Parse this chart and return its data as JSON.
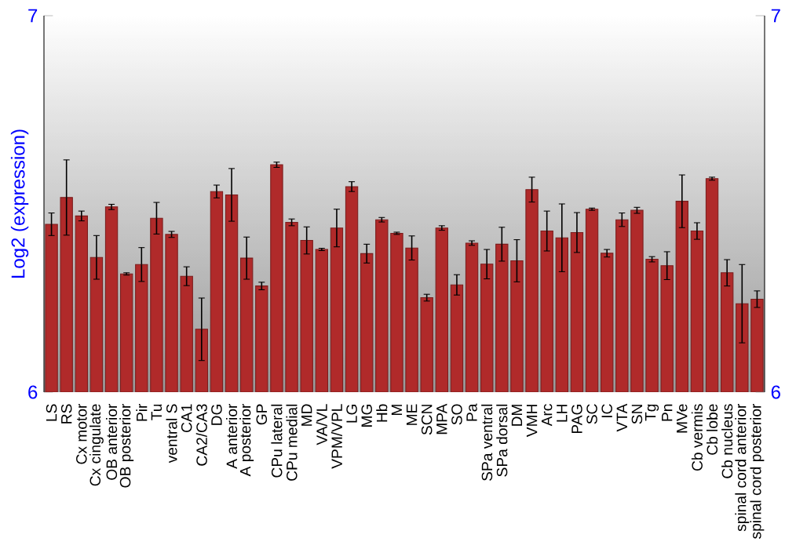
{
  "chart_data": {
    "type": "bar",
    "ylabel": "Log2 (expression)",
    "categories": [
      "LS",
      "RS",
      "Cx motor",
      "Cx cingulate",
      "OB anterior",
      "OB posterior",
      "Pir",
      "Tu",
      "ventral S",
      "CA1",
      "CA2/CA3",
      "DG",
      "A anterior",
      "A posterior",
      "GP",
      "CPu lateral",
      "CPu medial",
      "MD",
      "VA/VL",
      "VPM/VPL",
      "LG",
      "MG",
      "Hb",
      "M",
      "ME",
      "SCN",
      "MPA",
      "SO",
      "Pa",
      "SPa ventral",
      "SPa dorsal",
      "DM",
      "VMH",
      "Arc",
      "LH",
      "PAG",
      "SC",
      "IC",
      "VTA",
      "SN",
      "Tg",
      "Pn",
      "MVe",
      "Cb vermis",
      "Cb lobe",
      "Cb nucleus",
      "spinal cord anterior",
      "spinal cord posterior"
    ],
    "values": [
      6.446,
      6.517,
      6.468,
      6.358,
      6.492,
      6.314,
      6.339,
      6.462,
      6.419,
      6.308,
      6.167,
      6.533,
      6.524,
      6.356,
      6.282,
      6.604,
      6.451,
      6.403,
      6.379,
      6.436,
      6.546,
      6.368,
      6.458,
      6.422,
      6.383,
      6.251,
      6.436,
      6.285,
      6.396,
      6.34,
      6.393,
      6.349,
      6.538,
      6.428,
      6.41,
      6.424,
      6.486,
      6.369,
      6.458,
      6.483,
      6.353,
      6.336,
      6.507,
      6.428,
      6.567,
      6.317,
      6.235,
      6.247
    ],
    "errors": [
      0.03,
      0.1,
      0.013,
      0.058,
      0.007,
      0.003,
      0.045,
      0.042,
      0.008,
      0.025,
      0.083,
      0.017,
      0.07,
      0.056,
      0.01,
      0.007,
      0.009,
      0.036,
      0.003,
      0.05,
      0.013,
      0.025,
      0.006,
      0.003,
      0.032,
      0.009,
      0.006,
      0.027,
      0.006,
      0.039,
      0.045,
      0.056,
      0.033,
      0.053,
      0.09,
      0.053,
      0.003,
      0.01,
      0.018,
      0.008,
      0.007,
      0.037,
      0.07,
      0.022,
      0.004,
      0.035,
      0.104,
      0.022
    ],
    "color": "#b02a2a",
    "ylim": [
      6,
      7
    ],
    "yticks": [
      6,
      7
    ],
    "y2lim": [
      6,
      7
    ],
    "y2ticks": [
      6,
      7
    ]
  }
}
